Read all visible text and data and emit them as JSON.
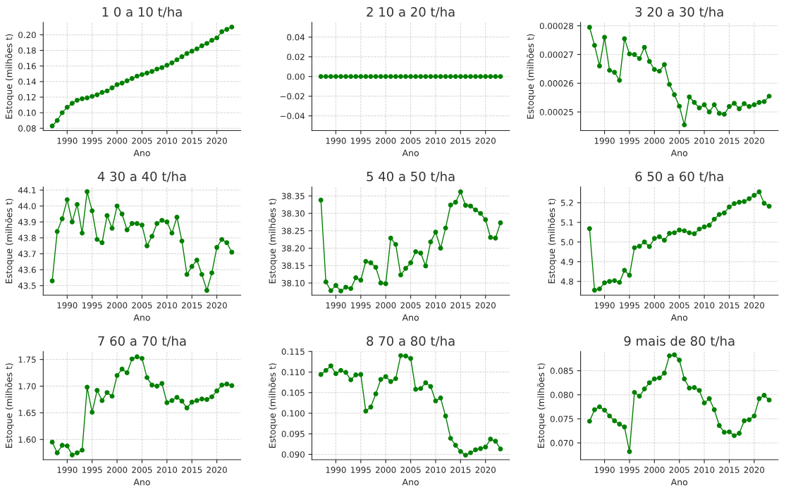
{
  "chart_data": [
    {
      "type": "line",
      "title": "1 0 a 10 t/ha",
      "xlabel": "Ano",
      "ylabel": "Estoque (milhões t)",
      "marker": "circle",
      "line_style": "solid",
      "grid": true,
      "x": [
        1987,
        1988,
        1989,
        1990,
        1991,
        1992,
        1993,
        1994,
        1995,
        1996,
        1997,
        1998,
        1999,
        2000,
        2001,
        2002,
        2003,
        2004,
        2005,
        2006,
        2007,
        2008,
        2009,
        2010,
        2011,
        2012,
        2013,
        2014,
        2015,
        2016,
        2017,
        2018,
        2019,
        2020,
        2021,
        2022,
        2023
      ],
      "series": [
        {
          "color": "#008000",
          "values": [
            0.083,
            0.09,
            0.1,
            0.107,
            0.112,
            0.116,
            0.118,
            0.119,
            0.121,
            0.123,
            0.126,
            0.128,
            0.132,
            0.136,
            0.138,
            0.141,
            0.144,
            0.147,
            0.149,
            0.151,
            0.153,
            0.156,
            0.158,
            0.161,
            0.164,
            0.168,
            0.172,
            0.176,
            0.179,
            0.182,
            0.186,
            0.189,
            0.193,
            0.196,
            0.204,
            0.207,
            0.21
          ]
        }
      ],
      "xlim": [
        1985.2,
        2024.8
      ],
      "xticks": [
        1990,
        1995,
        2000,
        2005,
        2010,
        2015,
        2020
      ],
      "ylim": [
        0.077,
        0.216
      ],
      "yticks": [
        {
          "value": 0.08,
          "label": "0.08"
        },
        {
          "value": 0.1,
          "label": "0.10"
        },
        {
          "value": 0.12,
          "label": "0.12"
        },
        {
          "value": 0.14,
          "label": "0.14"
        },
        {
          "value": 0.16,
          "label": "0.16"
        },
        {
          "value": 0.18,
          "label": "0.18"
        },
        {
          "value": 0.2,
          "label": "0.20"
        }
      ]
    },
    {
      "type": "line",
      "title": "2 10 a 20 t/ha",
      "xlabel": "Ano",
      "marker": "circle",
      "line_style": "solid",
      "grid": true,
      "x": [
        1987,
        1988,
        1989,
        1990,
        1991,
        1992,
        1993,
        1994,
        1995,
        1996,
        1997,
        1998,
        1999,
        2000,
        2001,
        2002,
        2003,
        2004,
        2005,
        2006,
        2007,
        2008,
        2009,
        2010,
        2011,
        2012,
        2013,
        2014,
        2015,
        2016,
        2017,
        2018,
        2019,
        2020,
        2021,
        2022,
        2023
      ],
      "series": [
        {
          "color": "#008000",
          "values": [
            0,
            0,
            0,
            0,
            0,
            0,
            0,
            0,
            0,
            0,
            0,
            0,
            0,
            0,
            0,
            0,
            0,
            0,
            0,
            0,
            0,
            0,
            0,
            0,
            0,
            0,
            0,
            0,
            0,
            0,
            0,
            0,
            0,
            0,
            0,
            0,
            0
          ]
        }
      ],
      "xlim": [
        1985.2,
        2024.8
      ],
      "xticks": [
        1990,
        1995,
        2000,
        2005,
        2010,
        2015,
        2020
      ],
      "ylim": [
        -0.055,
        0.055
      ],
      "yticks": [
        {
          "value": -0.04,
          "label": "−0.04"
        },
        {
          "value": -0.02,
          "label": "−0.02"
        },
        {
          "value": 0,
          "label": "0.00"
        },
        {
          "value": 0.02,
          "label": "0.02"
        },
        {
          "value": 0.04,
          "label": "0.04"
        }
      ]
    },
    {
      "type": "line",
      "title": "3 20 a 30 t/ha",
      "xlabel": "Ano",
      "ylabel": "Estoque (milhões t)",
      "marker": "circle",
      "line_style": "solid",
      "grid": true,
      "x": [
        1987,
        1988,
        1989,
        1990,
        1991,
        1992,
        1993,
        1994,
        1995,
        1996,
        1997,
        1998,
        1999,
        2000,
        2001,
        2002,
        2003,
        2004,
        2005,
        2006,
        2007,
        2008,
        2009,
        2010,
        2011,
        2012,
        2013,
        2014,
        2015,
        2016,
        2017,
        2018,
        2019,
        2020,
        2021,
        2022,
        2023
      ],
      "series": [
        {
          "color": "#008000",
          "values": [
            0.0002795,
            0.0002732,
            0.000266,
            0.000276,
            0.0002645,
            0.0002638,
            0.000261,
            0.0002755,
            0.0002702,
            0.00027,
            0.0002686,
            0.0002725,
            0.0002676,
            0.0002648,
            0.0002642,
            0.0002665,
            0.0002596,
            0.000256,
            0.000252,
            0.0002455,
            0.0002552,
            0.0002533,
            0.0002514,
            0.0002525,
            0.00025,
            0.0002525,
            0.0002495,
            0.0002492,
            0.0002519,
            0.000253,
            0.0002511,
            0.0002529,
            0.0002519,
            0.0002525,
            0.0002533,
            0.0002536,
            0.0002555
          ]
        }
      ],
      "xlim": [
        1985.2,
        2024.8
      ],
      "xticks": [
        1990,
        1995,
        2000,
        2005,
        2010,
        2015,
        2020
      ],
      "ylim": [
        0.0002435,
        0.0002812
      ],
      "yticks": [
        0.00025,
        0.00026,
        0.00027,
        0.00028
      ]
    },
    {
      "type": "line",
      "title": "4 30 a 40 t/ha",
      "xlabel": "Ano",
      "ylabel": "Estoque (milhões t)",
      "marker": "circle",
      "line_style": "solid",
      "grid": true,
      "x": [
        1987,
        1988,
        1989,
        1990,
        1991,
        1992,
        1993,
        1994,
        1995,
        1996,
        1997,
        1998,
        1999,
        2000,
        2001,
        2002,
        2003,
        2004,
        2005,
        2006,
        2007,
        2008,
        2009,
        2010,
        2011,
        2012,
        2013,
        2014,
        2015,
        2016,
        2017,
        2018,
        2019,
        2020,
        2021,
        2022,
        2023
      ],
      "series": [
        {
          "color": "#008000",
          "values": [
            43.53,
            43.84,
            43.92,
            44.04,
            43.9,
            44.01,
            43.83,
            44.09,
            43.97,
            43.79,
            43.77,
            43.94,
            43.86,
            44.0,
            43.95,
            43.85,
            43.89,
            43.89,
            43.88,
            43.75,
            43.81,
            43.89,
            43.91,
            43.9,
            43.83,
            43.93,
            43.78,
            43.57,
            43.62,
            43.66,
            43.57,
            43.47,
            43.58,
            43.74,
            43.79,
            43.77,
            43.71
          ]
        }
      ],
      "xlim": [
        1985.2,
        2024.8
      ],
      "xticks": [
        1990,
        1995,
        2000,
        2005,
        2010,
        2015,
        2020
      ],
      "ylim": [
        43.44,
        44.12
      ],
      "yticks": [
        43.5,
        43.6,
        43.7,
        43.8,
        43.9,
        {
          "value": 44.0,
          "label": "44.0"
        },
        44.1
      ]
    },
    {
      "type": "line",
      "title": "5 40 a 50 t/ha",
      "xlabel": "Ano",
      "ylabel": "Estoque (milhões t)",
      "marker": "circle",
      "line_style": "solid",
      "grid": true,
      "x": [
        1987,
        1988,
        1989,
        1990,
        1991,
        1992,
        1993,
        1994,
        1995,
        1996,
        1997,
        1998,
        1999,
        2000,
        2001,
        2002,
        2003,
        2004,
        2005,
        2006,
        2007,
        2008,
        2009,
        2010,
        2011,
        2012,
        2013,
        2014,
        2015,
        2016,
        2017,
        2018,
        2019,
        2020,
        2021,
        2022,
        2023
      ],
      "series": [
        {
          "color": "#008000",
          "values": [
            38.338,
            38.103,
            38.078,
            38.093,
            38.077,
            38.088,
            38.084,
            38.115,
            38.108,
            38.162,
            38.158,
            38.145,
            38.1,
            38.098,
            38.229,
            38.211,
            38.123,
            38.142,
            38.158,
            38.19,
            38.186,
            38.149,
            38.218,
            38.246,
            38.2,
            38.258,
            38.324,
            38.332,
            38.362,
            38.323,
            38.321,
            38.31,
            38.3,
            38.282,
            38.231,
            38.229,
            38.273
          ]
        }
      ],
      "xlim": [
        1985.2,
        2024.8
      ],
      "xticks": [
        1990,
        1995,
        2000,
        2005,
        2010,
        2015,
        2020
      ],
      "ylim": [
        38.065,
        38.376
      ],
      "yticks": [
        {
          "value": 38.1,
          "label": "38.10"
        },
        38.15,
        {
          "value": 38.2,
          "label": "38.20"
        },
        38.25,
        {
          "value": 38.3,
          "label": "38.30"
        },
        38.35
      ]
    },
    {
      "type": "line",
      "title": "6 50 a 60 t/ha",
      "xlabel": "Ano",
      "ylabel": "Estoque (milhões t)",
      "marker": "circle",
      "line_style": "solid",
      "grid": true,
      "x": [
        1987,
        1988,
        1989,
        1990,
        1991,
        1992,
        1993,
        1994,
        1995,
        1996,
        1997,
        1998,
        1999,
        2000,
        2001,
        2002,
        2003,
        2004,
        2005,
        2006,
        2007,
        2008,
        2009,
        2010,
        2011,
        2012,
        2013,
        2014,
        2015,
        2016,
        2017,
        2018,
        2019,
        2020,
        2021,
        2022,
        2023
      ],
      "series": [
        {
          "color": "#008000",
          "values": [
            5.068,
            4.755,
            4.762,
            4.793,
            4.8,
            4.804,
            4.795,
            4.856,
            4.831,
            4.971,
            4.979,
            5.0,
            4.977,
            5.018,
            5.027,
            5.009,
            5.044,
            5.047,
            5.061,
            5.057,
            5.047,
            5.042,
            5.066,
            5.077,
            5.085,
            5.116,
            5.14,
            5.148,
            5.178,
            5.195,
            5.202,
            5.206,
            5.22,
            5.237,
            5.255,
            5.197,
            5.182
          ]
        }
      ],
      "xlim": [
        1985.2,
        2024.8
      ],
      "xticks": [
        1990,
        1995,
        2000,
        2005,
        2010,
        2015,
        2020
      ],
      "ylim": [
        4.73,
        5.28
      ],
      "yticks": [
        4.8,
        4.9,
        {
          "value": 5.0,
          "label": "5.0"
        },
        5.1,
        5.2
      ]
    },
    {
      "type": "line",
      "title": "7 60 a 70 t/ha",
      "xlabel": "Ano",
      "ylabel": "Estoque (milhões t)",
      "marker": "circle",
      "line_style": "solid",
      "grid": true,
      "x": [
        1987,
        1988,
        1989,
        1990,
        1991,
        1992,
        1993,
        1994,
        1995,
        1996,
        1997,
        1998,
        1999,
        2000,
        2001,
        2002,
        2003,
        2004,
        2005,
        2006,
        2007,
        2008,
        2009,
        2010,
        2011,
        2012,
        2013,
        2014,
        2015,
        2016,
        2017,
        2018,
        2019,
        2020,
        2021,
        2022,
        2023
      ],
      "series": [
        {
          "color": "#008000",
          "values": [
            1.595,
            1.575,
            1.589,
            1.588,
            1.571,
            1.575,
            1.58,
            1.698,
            1.651,
            1.692,
            1.673,
            1.688,
            1.681,
            1.72,
            1.732,
            1.725,
            1.751,
            1.755,
            1.752,
            1.716,
            1.702,
            1.7,
            1.705,
            1.669,
            1.673,
            1.679,
            1.672,
            1.659,
            1.67,
            1.673,
            1.676,
            1.675,
            1.68,
            1.691,
            1.702,
            1.704,
            1.701
          ]
        }
      ],
      "xlim": [
        1985.2,
        2024.8
      ],
      "xticks": [
        1990,
        1995,
        2000,
        2005,
        2010,
        2015,
        2020
      ],
      "ylim": [
        1.562,
        1.765
      ],
      "yticks": [
        {
          "value": 1.6,
          "label": "1.60"
        },
        1.65,
        {
          "value": 1.7,
          "label": "1.70"
        },
        1.75
      ]
    },
    {
      "type": "line",
      "title": "8 70 a 80 t/ha",
      "xlabel": "Ano",
      "ylabel": "Estoque (milhões t)",
      "marker": "circle",
      "line_style": "solid",
      "grid": true,
      "x": [
        1987,
        1988,
        1989,
        1990,
        1991,
        1992,
        1993,
        1994,
        1995,
        1996,
        1997,
        1998,
        1999,
        2000,
        2001,
        2002,
        2003,
        2004,
        2005,
        2006,
        2007,
        2008,
        2009,
        2010,
        2011,
        2012,
        2013,
        2014,
        2015,
        2016,
        2017,
        2018,
        2019,
        2020,
        2021,
        2022,
        2023
      ],
      "series": [
        {
          "color": "#008000",
          "values": [
            0.1094,
            0.1104,
            0.1115,
            0.1096,
            0.1104,
            0.1099,
            0.1081,
            0.1093,
            0.1094,
            0.1005,
            0.1015,
            0.1047,
            0.1082,
            0.1089,
            0.1077,
            0.1084,
            0.114,
            0.1139,
            0.1133,
            0.1058,
            0.106,
            0.1074,
            0.1065,
            0.103,
            0.1037,
            0.0993,
            0.0939,
            0.0922,
            0.0907,
            0.0898,
            0.0904,
            0.0911,
            0.0914,
            0.0918,
            0.0937,
            0.0932,
            0.0913
          ]
        }
      ],
      "xlim": [
        1985.2,
        2024.8
      ],
      "xticks": [
        1990,
        1995,
        2000,
        2005,
        2010,
        2015,
        2020
      ],
      "ylim": [
        0.0887,
        0.115
      ],
      "yticks": [
        {
          "value": 0.09,
          "label": "0.090"
        },
        0.095,
        {
          "value": 0.1,
          "label": "0.100"
        },
        0.105,
        {
          "value": 0.11,
          "label": "0.110"
        },
        0.115
      ]
    },
    {
      "type": "line",
      "title": "9 mais de 80 t/ha",
      "xlabel": "Ano",
      "ylabel": "Estoque (milhões t)",
      "marker": "circle",
      "line_style": "solid",
      "grid": true,
      "x": [
        1987,
        1988,
        1989,
        1990,
        1991,
        1992,
        1993,
        1994,
        1995,
        1996,
        1997,
        1998,
        1999,
        2000,
        2001,
        2002,
        2003,
        2004,
        2005,
        2006,
        2007,
        2008,
        2009,
        2010,
        2011,
        2012,
        2013,
        2014,
        2015,
        2016,
        2017,
        2018,
        2019,
        2020,
        2021,
        2022,
        2023
      ],
      "series": [
        {
          "color": "#008000",
          "values": [
            0.0745,
            0.0769,
            0.0775,
            0.0768,
            0.0756,
            0.0746,
            0.0739,
            0.0733,
            0.0682,
            0.0805,
            0.0797,
            0.0812,
            0.0825,
            0.0833,
            0.0835,
            0.0845,
            0.0881,
            0.0883,
            0.0872,
            0.0833,
            0.0814,
            0.0815,
            0.0809,
            0.0783,
            0.0792,
            0.0769,
            0.0736,
            0.0722,
            0.0723,
            0.0715,
            0.072,
            0.0746,
            0.0748,
            0.0756,
            0.0792,
            0.0799,
            0.0789
          ]
        }
      ],
      "xlim": [
        1985.2,
        2024.8
      ],
      "xticks": [
        1990,
        1995,
        2000,
        2005,
        2010,
        2015,
        2020
      ],
      "ylim": [
        0.0665,
        0.089
      ],
      "yticks": [
        {
          "value": 0.07,
          "label": "0.070"
        },
        0.075,
        {
          "value": 0.08,
          "label": "0.080"
        },
        0.085
      ]
    }
  ]
}
